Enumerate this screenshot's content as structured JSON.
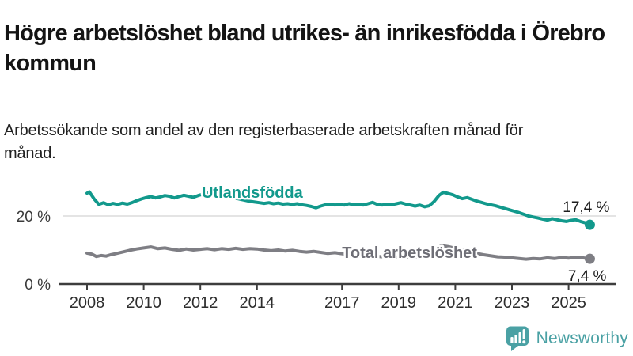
{
  "header": {
    "title": "Högre arbetslöshet bland utrikes- än inrikesfödda i Örebro kommun",
    "subtitle": "Arbetssökande som andel av den registerbaserade arbetskraften månad för månad."
  },
  "chart_data": {
    "type": "line",
    "title": "Högre arbetslöshet bland utrikes- än inrikesfödda i Örebro kommun",
    "xlabel": "",
    "ylabel": "Arbetssökande som andel av den registerbaserade arbetskraften",
    "x_axis": {
      "ticks": [
        2008,
        2010,
        2012,
        2014,
        2017,
        2019,
        2021,
        2023,
        2025
      ],
      "range": [
        2007.1,
        2026.6
      ]
    },
    "y_axis": {
      "range": [
        0,
        33
      ],
      "ticks": [
        {
          "value": 0,
          "label": "0 %",
          "gridline": false
        },
        {
          "value": 20,
          "label": "20 %",
          "gridline": true
        }
      ]
    },
    "legend_position": "inline-labels",
    "grid": "y-20-only",
    "style": {
      "axis_color": "#3d3d3d",
      "grid_color": "#dcdcdc",
      "background": "#ffffff"
    },
    "series": [
      {
        "id": "utlandsfodda",
        "name": "Utlandsfödda",
        "color": "#12998c",
        "label_color": "#12998c",
        "end_label": "17,4 %",
        "end_value": 17.4,
        "label_pos": [
          2012.05,
          25.35
        ],
        "value_label_offset": [
          25,
          -16
        ],
        "points": [
          [
            2008.0,
            26.7
          ],
          [
            2008.08,
            27.1
          ],
          [
            2008.25,
            25.0
          ],
          [
            2008.42,
            23.4
          ],
          [
            2008.58,
            23.9
          ],
          [
            2008.75,
            23.3
          ],
          [
            2008.92,
            23.7
          ],
          [
            2009.08,
            23.4
          ],
          [
            2009.25,
            23.8
          ],
          [
            2009.42,
            23.5
          ],
          [
            2009.58,
            23.9
          ],
          [
            2009.75,
            24.5
          ],
          [
            2009.92,
            25.0
          ],
          [
            2010.08,
            25.4
          ],
          [
            2010.25,
            25.7
          ],
          [
            2010.42,
            25.3
          ],
          [
            2010.58,
            25.6
          ],
          [
            2010.75,
            26.0
          ],
          [
            2010.92,
            25.8
          ],
          [
            2011.08,
            25.3
          ],
          [
            2011.25,
            25.7
          ],
          [
            2011.42,
            26.1
          ],
          [
            2011.58,
            25.8
          ],
          [
            2011.75,
            25.5
          ],
          [
            2011.92,
            26.0
          ],
          [
            2012.08,
            26.4
          ],
          [
            2012.25,
            26.9
          ],
          [
            2012.42,
            27.3
          ],
          [
            2012.58,
            26.9
          ],
          [
            2012.75,
            26.5
          ],
          [
            2012.92,
            26.1
          ],
          [
            2013.08,
            25.6
          ],
          [
            2013.25,
            25.2
          ],
          [
            2013.42,
            24.9
          ],
          [
            2013.58,
            24.6
          ],
          [
            2013.75,
            24.3
          ],
          [
            2013.92,
            24.1
          ],
          [
            2014.08,
            23.9
          ],
          [
            2014.25,
            23.7
          ],
          [
            2014.42,
            23.9
          ],
          [
            2014.58,
            23.6
          ],
          [
            2014.75,
            23.8
          ],
          [
            2014.92,
            23.5
          ],
          [
            2015.08,
            23.6
          ],
          [
            2015.25,
            23.4
          ],
          [
            2015.42,
            23.6
          ],
          [
            2015.58,
            23.3
          ],
          [
            2015.75,
            23.1
          ],
          [
            2015.92,
            22.8
          ],
          [
            2016.08,
            22.4
          ],
          [
            2016.25,
            22.9
          ],
          [
            2016.42,
            23.3
          ],
          [
            2016.58,
            23.5
          ],
          [
            2016.75,
            23.2
          ],
          [
            2016.92,
            23.4
          ],
          [
            2017.08,
            23.2
          ],
          [
            2017.25,
            23.6
          ],
          [
            2017.42,
            23.3
          ],
          [
            2017.58,
            23.5
          ],
          [
            2017.75,
            23.2
          ],
          [
            2017.92,
            23.6
          ],
          [
            2018.08,
            24.0
          ],
          [
            2018.25,
            23.4
          ],
          [
            2018.42,
            23.2
          ],
          [
            2018.58,
            23.5
          ],
          [
            2018.75,
            23.3
          ],
          [
            2018.92,
            23.6
          ],
          [
            2019.08,
            23.9
          ],
          [
            2019.25,
            23.5
          ],
          [
            2019.42,
            23.2
          ],
          [
            2019.58,
            22.9
          ],
          [
            2019.75,
            23.2
          ],
          [
            2019.92,
            22.7
          ],
          [
            2020.08,
            23.0
          ],
          [
            2020.25,
            24.2
          ],
          [
            2020.42,
            26.0
          ],
          [
            2020.58,
            27.0
          ],
          [
            2020.75,
            26.6
          ],
          [
            2020.92,
            26.2
          ],
          [
            2021.08,
            25.6
          ],
          [
            2021.25,
            25.1
          ],
          [
            2021.42,
            25.4
          ],
          [
            2021.58,
            24.9
          ],
          [
            2021.75,
            24.4
          ],
          [
            2021.92,
            24.0
          ],
          [
            2022.08,
            23.6
          ],
          [
            2022.25,
            23.3
          ],
          [
            2022.42,
            23.0
          ],
          [
            2022.58,
            22.6
          ],
          [
            2022.75,
            22.2
          ],
          [
            2022.92,
            21.8
          ],
          [
            2023.08,
            21.4
          ],
          [
            2023.25,
            21.0
          ],
          [
            2023.42,
            20.5
          ],
          [
            2023.58,
            20.0
          ],
          [
            2023.75,
            19.7
          ],
          [
            2023.92,
            19.4
          ],
          [
            2024.08,
            19.1
          ],
          [
            2024.25,
            18.8
          ],
          [
            2024.42,
            19.2
          ],
          [
            2024.58,
            18.9
          ],
          [
            2024.75,
            18.6
          ],
          [
            2024.92,
            18.4
          ],
          [
            2025.08,
            18.7
          ],
          [
            2025.25,
            18.9
          ],
          [
            2025.42,
            18.4
          ],
          [
            2025.58,
            18.0
          ],
          [
            2025.75,
            17.4
          ]
        ]
      },
      {
        "id": "total",
        "name": "Total arbetslöshet",
        "color": "#7e7e84",
        "label_color": "#6e6e76",
        "end_label": "7,4 %",
        "end_value": 7.4,
        "label_pos": [
          2017.0,
          7.67
        ],
        "value_label_offset": [
          21,
          28
        ],
        "points": [
          [
            2008.0,
            9.1
          ],
          [
            2008.17,
            8.8
          ],
          [
            2008.33,
            8.1
          ],
          [
            2008.5,
            8.4
          ],
          [
            2008.67,
            8.2
          ],
          [
            2008.83,
            8.6
          ],
          [
            2009.0,
            8.9
          ],
          [
            2009.25,
            9.4
          ],
          [
            2009.5,
            9.9
          ],
          [
            2009.75,
            10.3
          ],
          [
            2010.0,
            10.6
          ],
          [
            2010.25,
            10.9
          ],
          [
            2010.5,
            10.4
          ],
          [
            2010.75,
            10.6
          ],
          [
            2011.0,
            10.2
          ],
          [
            2011.25,
            9.9
          ],
          [
            2011.5,
            10.3
          ],
          [
            2011.75,
            10.0
          ],
          [
            2012.0,
            10.2
          ],
          [
            2012.25,
            10.4
          ],
          [
            2012.5,
            10.1
          ],
          [
            2012.75,
            10.4
          ],
          [
            2013.0,
            10.2
          ],
          [
            2013.25,
            10.5
          ],
          [
            2013.5,
            10.2
          ],
          [
            2013.75,
            10.4
          ],
          [
            2014.0,
            10.3
          ],
          [
            2014.25,
            10.0
          ],
          [
            2014.5,
            9.8
          ],
          [
            2014.75,
            10.0
          ],
          [
            2015.0,
            9.7
          ],
          [
            2015.25,
            9.9
          ],
          [
            2015.5,
            9.6
          ],
          [
            2015.75,
            9.4
          ],
          [
            2016.0,
            9.6
          ],
          [
            2016.25,
            9.3
          ],
          [
            2016.5,
            9.0
          ],
          [
            2016.75,
            9.2
          ],
          [
            2017.0,
            8.9
          ],
          [
            2017.25,
            8.6
          ],
          [
            2017.5,
            8.5
          ],
          [
            2017.75,
            8.3
          ],
          [
            2018.0,
            8.2
          ],
          [
            2018.5,
            8.0
          ],
          [
            2019.0,
            7.9
          ],
          [
            2019.5,
            7.8
          ],
          [
            2020.0,
            8.2
          ],
          [
            2020.5,
            11.3
          ],
          [
            2020.75,
            11.0
          ],
          [
            2021.0,
            10.5
          ],
          [
            2021.5,
            9.4
          ],
          [
            2022.0,
            8.6
          ],
          [
            2022.5,
            8.0
          ],
          [
            2022.75,
            7.9
          ],
          [
            2023.0,
            7.7
          ],
          [
            2023.25,
            7.5
          ],
          [
            2023.5,
            7.3
          ],
          [
            2023.75,
            7.5
          ],
          [
            2024.0,
            7.4
          ],
          [
            2024.25,
            7.7
          ],
          [
            2024.5,
            7.5
          ],
          [
            2024.75,
            7.8
          ],
          [
            2025.0,
            7.6
          ],
          [
            2025.25,
            7.9
          ],
          [
            2025.5,
            7.7
          ],
          [
            2025.75,
            7.4
          ]
        ]
      }
    ]
  },
  "footer": {
    "brand": "Newsworthy",
    "brand_color": "#4AA1A4",
    "icon": "bar-chart-speech-bubble-icon"
  }
}
